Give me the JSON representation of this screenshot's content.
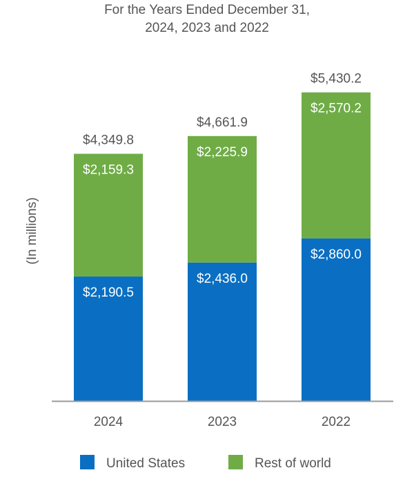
{
  "chart_data": {
    "type": "bar",
    "stacked": true,
    "title_lines": [
      "For the Years Ended December 31,",
      "2024, 2023 and 2022"
    ],
    "ylabel": "(In millions)",
    "categories": [
      "2024",
      "2023",
      "2022"
    ],
    "ylim": [
      0,
      6000
    ],
    "series": [
      {
        "name": "United States",
        "color": "#0a6fc2",
        "values": [
          2190.5,
          2436.0,
          2860.0
        ],
        "labels": [
          "$2,190.5",
          "$2,436.0",
          "$2,860.0"
        ]
      },
      {
        "name": "Rest of world",
        "color": "#6fac46",
        "values": [
          2159.3,
          2225.9,
          2570.2
        ],
        "labels": [
          "$2,159.3",
          "$2,225.9",
          "$2,570.2"
        ]
      }
    ],
    "totals": [
      4349.8,
      4661.9,
      5430.2
    ],
    "total_labels": [
      "$4,349.8",
      "$4,661.9",
      "$5,430.2"
    ],
    "legend_position": "bottom",
    "grid": false
  }
}
